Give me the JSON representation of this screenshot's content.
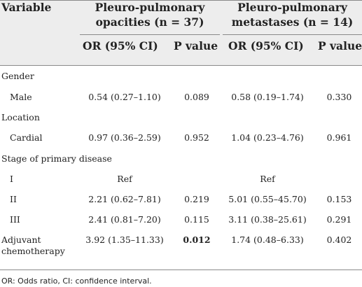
{
  "header": {
    "variable": "Variable",
    "group1_line1": "Pleuro-pulmonary",
    "group1_line2": "opacities (n = 37)",
    "group2_line1": "Pleuro-pulmonary",
    "group2_line2": "metastases (n = 14)",
    "or_ci_1": "OR (95% CI)",
    "p_1": "P value",
    "or_ci_2": "OR (95% CI)",
    "p_2": "P value"
  },
  "rows": [
    {
      "variable": "Gender",
      "or1": "",
      "p1": "",
      "or2": "",
      "p2": ""
    },
    {
      "variable": "Male",
      "or1": "0.54 (0.27–1.10)",
      "p1": "0.089",
      "or2": "0.58 (0.19–1.74)",
      "p2": "0.330"
    },
    {
      "variable": "Location",
      "or1": "",
      "p1": "",
      "or2": "",
      "p2": ""
    },
    {
      "variable": "Cardial",
      "or1": "0.97 (0.36–2.59)",
      "p1": "0.952",
      "or2": "1.04 (0.23–4.76)",
      "p2": "0.961"
    },
    {
      "variable": "Stage of primary disease",
      "or1": "",
      "p1": "",
      "or2": "",
      "p2": ""
    },
    {
      "variable": "I",
      "or1": "Ref",
      "p1": "",
      "or2": "Ref",
      "p2": ""
    },
    {
      "variable": "II",
      "or1": "2.21 (0.62–7.81)",
      "p1": "0.219",
      "or2": "5.01 (0.55–45.70)",
      "p2": "0.153"
    },
    {
      "variable": "III",
      "or1": "2.41 (0.81–7.20)",
      "p1": "0.115",
      "or2": "3.11 (0.38–25.61)",
      "p2": "0.291"
    },
    {
      "variable": "Adjuvant",
      "variable_line2": "chemotherapy",
      "or1": "3.92 (1.35–11.33)",
      "p1": "0.012",
      "p1_bold": true,
      "or2": "1.74 (0.48–6.33)",
      "p2": "0.402"
    }
  ],
  "footnote": "OR: Odds ratio, CI: confidence interval."
}
